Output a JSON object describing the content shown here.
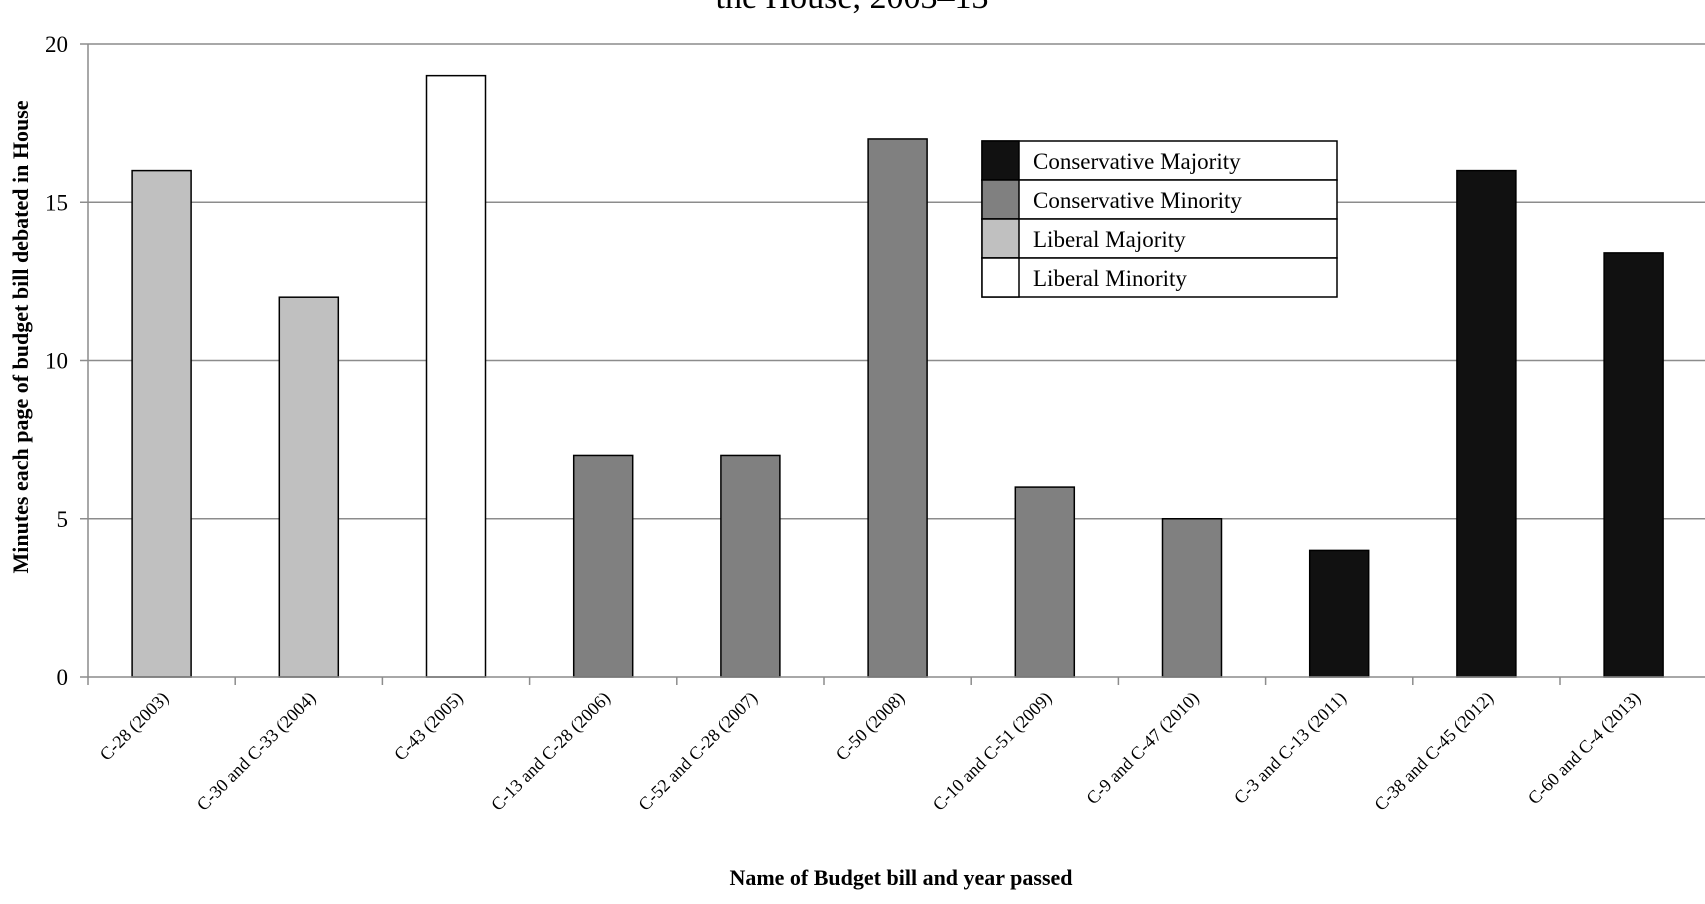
{
  "chart_data": {
    "type": "bar",
    "title": "the House, 2003–13",
    "xlabel": "Name of Budget bill and year passed",
    "ylabel": "Minutes each page of budget bill debated in House",
    "ylim": [
      0,
      20
    ],
    "yticks": [
      0,
      5,
      10,
      15,
      20
    ],
    "grid": true,
    "legend_position": "top-center",
    "categories": [
      "C-28 (2003)",
      "C-30 and C-33 (2004)",
      "C-43 (2005)",
      "C-13 and C-28 (2006)",
      "C-52 and C-28 (2007)",
      "C-50 (2008)",
      "C-10 and C-51 (2009)",
      "C-9 and C-47 (2010)",
      "C-3 and C-13 (2011)",
      "C-38 and C-45 (2012)",
      "C-60 and C-4 (2013)"
    ],
    "values": [
      16,
      12,
      19,
      7,
      7,
      17,
      6,
      5,
      4,
      16,
      13.4
    ],
    "bar_groups": [
      "Liberal Majority",
      "Liberal Majority",
      "Liberal Minority",
      "Conservative Minority",
      "Conservative Minority",
      "Conservative Minority",
      "Conservative Minority",
      "Conservative Minority",
      "Conservative Majority",
      "Conservative Majority",
      "Conservative Majority"
    ],
    "legend": [
      {
        "name": "Conservative Majority",
        "color": "#111111"
      },
      {
        "name": "Conservative Minority",
        "color": "#808080"
      },
      {
        "name": "Liberal Majority",
        "color": "#c0c0c0"
      },
      {
        "name": "Liberal Minority",
        "color": "#ffffff"
      }
    ]
  }
}
